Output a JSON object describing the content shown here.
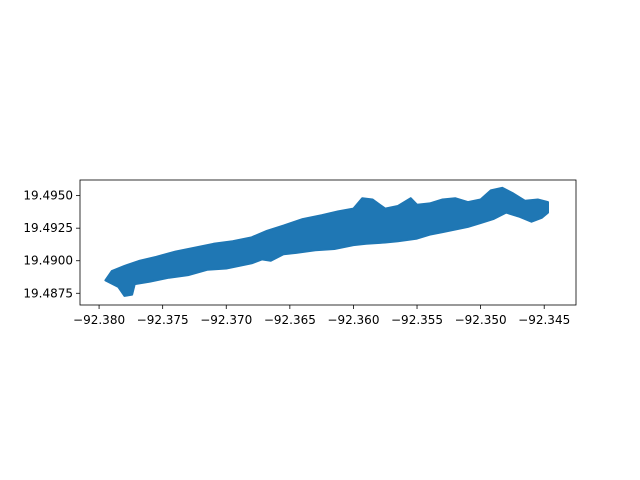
{
  "figure": {
    "background": "#ffffff"
  },
  "chart_data": {
    "type": "map",
    "geometry": "polygon",
    "fill_color": "#1f77b4",
    "grid": false,
    "legend": "none",
    "title": "",
    "xlabel": "",
    "ylabel": "",
    "xlim": [
      -92.3815,
      -92.3425
    ],
    "ylim": [
      19.4866,
      19.4962
    ],
    "x_ticks": [
      {
        "value": -92.38,
        "label": "−92.380"
      },
      {
        "value": -92.375,
        "label": "−92.375"
      },
      {
        "value": -92.37,
        "label": "−92.370"
      },
      {
        "value": -92.365,
        "label": "−92.365"
      },
      {
        "value": -92.36,
        "label": "−92.360"
      },
      {
        "value": -92.355,
        "label": "−92.355"
      },
      {
        "value": -92.35,
        "label": "−92.350"
      },
      {
        "value": -92.345,
        "label": "−92.345"
      }
    ],
    "y_ticks": [
      {
        "value": 19.4875,
        "label": "19.4875"
      },
      {
        "value": 19.49,
        "label": "19.4900"
      },
      {
        "value": 19.4925,
        "label": "19.4925"
      },
      {
        "value": 19.495,
        "label": "19.4950"
      }
    ],
    "polygon": [
      [
        -92.3795,
        19.4885
      ],
      [
        -92.3785,
        19.488
      ],
      [
        -92.378,
        19.4873
      ],
      [
        -92.3774,
        19.4874
      ],
      [
        -92.3772,
        19.4882
      ],
      [
        -92.376,
        19.4884
      ],
      [
        -92.3745,
        19.4887
      ],
      [
        -92.373,
        19.4889
      ],
      [
        -92.3715,
        19.4893
      ],
      [
        -92.37,
        19.4894
      ],
      [
        -92.369,
        19.4896
      ],
      [
        -92.368,
        19.4898
      ],
      [
        -92.3672,
        19.4901
      ],
      [
        -92.3665,
        19.49
      ],
      [
        -92.3655,
        19.4905
      ],
      [
        -92.3645,
        19.4906
      ],
      [
        -92.363,
        19.4908
      ],
      [
        -92.3615,
        19.4909
      ],
      [
        -92.36,
        19.4912
      ],
      [
        -92.359,
        19.4913
      ],
      [
        -92.3575,
        19.4914
      ],
      [
        -92.3565,
        19.4915
      ],
      [
        -92.355,
        19.4917
      ],
      [
        -92.354,
        19.492
      ],
      [
        -92.353,
        19.4922
      ],
      [
        -92.352,
        19.4924
      ],
      [
        -92.351,
        19.4926
      ],
      [
        -92.35,
        19.4929
      ],
      [
        -92.349,
        19.4932
      ],
      [
        -92.348,
        19.4937
      ],
      [
        -92.347,
        19.4934
      ],
      [
        -92.346,
        19.493
      ],
      [
        -92.3452,
        19.4933
      ],
      [
        -92.3447,
        19.4937
      ],
      [
        -92.3447,
        19.4945
      ],
      [
        -92.3455,
        19.4947
      ],
      [
        -92.3465,
        19.4946
      ],
      [
        -92.3475,
        19.4952
      ],
      [
        -92.3483,
        19.4956
      ],
      [
        -92.3492,
        19.4954
      ],
      [
        -92.35,
        19.4947
      ],
      [
        -92.351,
        19.4945
      ],
      [
        -92.352,
        19.4948
      ],
      [
        -92.353,
        19.4947
      ],
      [
        -92.354,
        19.4944
      ],
      [
        -92.355,
        19.4943
      ],
      [
        -92.3555,
        19.4948
      ],
      [
        -92.3565,
        19.4942
      ],
      [
        -92.3575,
        19.494
      ],
      [
        -92.3585,
        19.4947
      ],
      [
        -92.3593,
        19.4948
      ],
      [
        -92.36,
        19.494
      ],
      [
        -92.3612,
        19.4938
      ],
      [
        -92.3625,
        19.4935
      ],
      [
        -92.364,
        19.4932
      ],
      [
        -92.3655,
        19.4927
      ],
      [
        -92.3668,
        19.4923
      ],
      [
        -92.368,
        19.4918
      ],
      [
        -92.3695,
        19.4915
      ],
      [
        -92.371,
        19.4913
      ],
      [
        -92.3725,
        19.491
      ],
      [
        -92.374,
        19.4907
      ],
      [
        -92.3755,
        19.4903
      ],
      [
        -92.3768,
        19.49
      ],
      [
        -92.378,
        19.4896
      ],
      [
        -92.379,
        19.4892
      ]
    ]
  }
}
